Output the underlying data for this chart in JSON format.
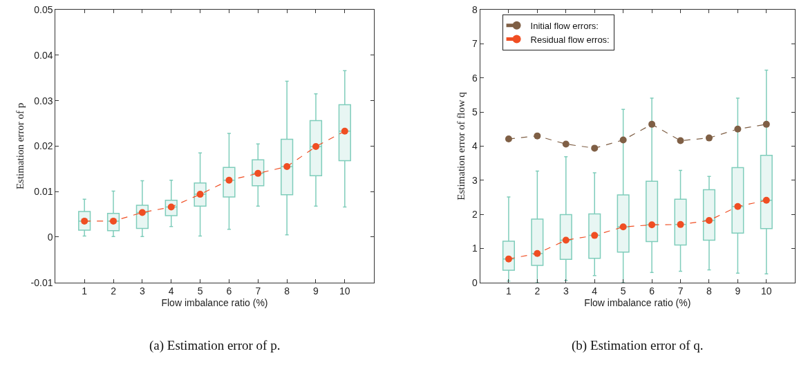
{
  "chart_data": [
    {
      "type": "box",
      "ylabel": "Estimation error of p",
      "xlabel": "Flow imbalance ratio (%)",
      "annotations": [
        "(a) Estimation error of p."
      ],
      "xlim": [
        0,
        11
      ],
      "xticks": [
        1,
        2,
        3,
        4,
        5,
        6,
        7,
        8,
        9,
        10
      ],
      "ylim": [
        -0.01,
        0.05
      ],
      "yticks": [
        -0.01,
        0,
        0.01,
        0.02,
        0.03,
        0.04,
        0.05
      ],
      "legend": false,
      "x": [
        1,
        2,
        3,
        4,
        5,
        6,
        7,
        8,
        9,
        10
      ],
      "series": [
        {
          "color": "#7fcdbb",
          "boxes": [
            {
              "low": 0.0002,
              "q1": 0.0015,
              "median": 0.0035,
              "q3": 0.0056,
              "high": 0.0083
            },
            {
              "low": 0.0001,
              "q1": 0.0014,
              "median": 0.0035,
              "q3": 0.0052,
              "high": 0.0101
            },
            {
              "low": 0.0001,
              "q1": 0.0019,
              "median": 0.0054,
              "q3": 0.007,
              "high": 0.0124
            },
            {
              "low": 0.0023,
              "q1": 0.0047,
              "median": 0.0066,
              "q3": 0.0081,
              "high": 0.0125
            },
            {
              "low": 0.0002,
              "q1": 0.0068,
              "median": 0.0094,
              "q3": 0.0119,
              "high": 0.0185
            },
            {
              "low": 0.0017,
              "q1": 0.0088,
              "median": 0.0125,
              "q3": 0.0153,
              "high": 0.0228
            },
            {
              "low": 0.0068,
              "q1": 0.0113,
              "median": 0.014,
              "q3": 0.017,
              "high": 0.0205
            },
            {
              "low": 0.0005,
              "q1": 0.0093,
              "median": 0.0155,
              "q3": 0.0215,
              "high": 0.0343
            },
            {
              "low": 0.0068,
              "q1": 0.0135,
              "median": 0.0199,
              "q3": 0.0256,
              "high": 0.0315
            },
            {
              "low": 0.0066,
              "q1": 0.0168,
              "median": 0.0233,
              "q3": 0.0291,
              "high": 0.0366
            }
          ]
        },
        {
          "type": "line",
          "color": "#f04e23",
          "marker": "circle",
          "line_style": "dashed",
          "values": [
            0.0035,
            0.0035,
            0.0054,
            0.0066,
            0.0094,
            0.0125,
            0.014,
            0.0155,
            0.0199,
            0.0233
          ]
        }
      ]
    },
    {
      "type": "box",
      "ylabel": "Estimation error of flow q",
      "xlabel": "Flow imbalance ratio (%)",
      "annotations": [
        "(b) Estimation error of q."
      ],
      "xlim": [
        0,
        11
      ],
      "xticks": [
        1,
        2,
        3,
        4,
        5,
        6,
        7,
        8,
        9,
        10
      ],
      "ylim": [
        0,
        8
      ],
      "yticks": [
        0,
        1,
        2,
        3,
        4,
        5,
        6,
        7,
        8
      ],
      "legend": "top left",
      "x": [
        1,
        2,
        3,
        4,
        5,
        6,
        7,
        8,
        9,
        10
      ],
      "series": [
        {
          "color": "#7fcdbb",
          "boxes": [
            {
              "low": 0.04,
              "q1": 0.36,
              "median": 0.69,
              "q3": 1.21,
              "high": 2.51
            },
            {
              "low": 0,
              "q1": 0.5,
              "median": 0.85,
              "q3": 1.86,
              "high": 3.27
            },
            {
              "low": 0.06,
              "q1": 0.68,
              "median": 1.24,
              "q3": 1.99,
              "high": 3.69
            },
            {
              "low": 0.2,
              "q1": 0.71,
              "median": 1.38,
              "q3": 2.01,
              "high": 3.22
            },
            {
              "low": 0,
              "q1": 0.89,
              "median": 1.63,
              "q3": 2.57,
              "high": 5.08
            },
            {
              "low": 0.29,
              "q1": 1.2,
              "median": 1.69,
              "q3": 2.97,
              "high": 5.41
            },
            {
              "low": 0.33,
              "q1": 1.1,
              "median": 1.7,
              "q3": 2.44,
              "high": 3.29
            },
            {
              "low": 0.37,
              "q1": 1.24,
              "median": 1.82,
              "q3": 2.72,
              "high": 3.11
            },
            {
              "low": 0.27,
              "q1": 1.45,
              "median": 2.23,
              "q3": 3.37,
              "high": 5.41
            },
            {
              "low": 0.25,
              "q1": 1.58,
              "median": 2.41,
              "q3": 3.73,
              "high": 6.23
            }
          ]
        },
        {
          "type": "line",
          "name": "Initial flow errors:",
          "color": "#7f5f45",
          "marker": "circle",
          "line_style": "dashed",
          "values": [
            4.21,
            4.3,
            4.06,
            3.94,
            4.18,
            4.64,
            4.16,
            4.24,
            4.5,
            4.64
          ]
        },
        {
          "type": "line",
          "name": "Residual flow erros:",
          "color": "#f04e23",
          "marker": "circle",
          "line_style": "dashed",
          "values": [
            0.69,
            0.85,
            1.24,
            1.38,
            1.63,
            1.69,
            1.7,
            1.82,
            2.23,
            2.41
          ]
        }
      ]
    }
  ]
}
